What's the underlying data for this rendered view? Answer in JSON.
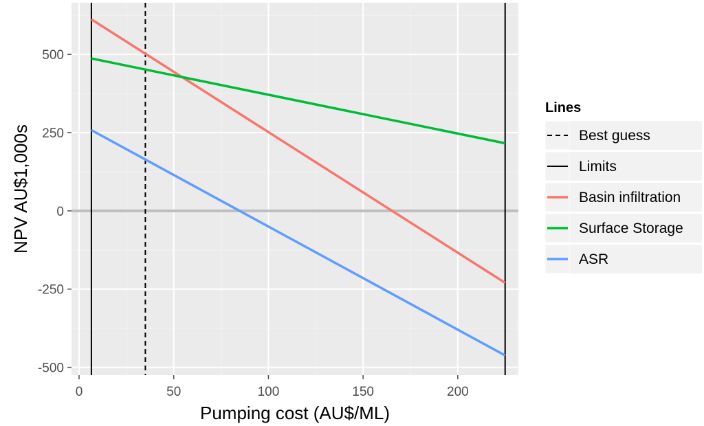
{
  "chart_data": {
    "type": "line",
    "xlabel": "Pumping cost (AU$/ML)",
    "ylabel": "NPV AU$1,000s",
    "xlim": [
      -4,
      232
    ],
    "ylim": [
      -525,
      665
    ],
    "xticks": [
      0,
      50,
      100,
      150,
      200
    ],
    "yticks": [
      -500,
      -250,
      0,
      250,
      500
    ],
    "xtick_labels": [
      "0",
      "50",
      "100",
      "150",
      "200"
    ],
    "ytick_labels": [
      "-500",
      "-250",
      "0",
      "250",
      "500"
    ],
    "grid": true,
    "zero_line": 0,
    "series": [
      {
        "name": "Basin infiltration",
        "color": "#f8766d",
        "x": [
          6.5,
          225
        ],
        "y": [
          612,
          -230
        ]
      },
      {
        "name": "Surface Storage",
        "color": "#00ba38",
        "x": [
          6.5,
          225
        ],
        "y": [
          487,
          216
        ]
      },
      {
        "name": "ASR",
        "color": "#619cff",
        "x": [
          6.5,
          225
        ],
        "y": [
          258,
          -462
        ]
      }
    ],
    "vlines": [
      {
        "name": "Best guess",
        "x": 35,
        "style": "dashed"
      },
      {
        "name": "Limits",
        "x": 6.5,
        "style": "solid"
      },
      {
        "name": "Limits",
        "x": 225,
        "style": "solid"
      }
    ],
    "legend": {
      "title": "Lines",
      "position": "right",
      "entries": [
        {
          "label": "Best guess",
          "style": "dashed",
          "color": "#000000"
        },
        {
          "label": "Limits",
          "style": "solid",
          "color": "#000000"
        },
        {
          "label": "Basin infiltration",
          "style": "solid",
          "color": "#f8766d"
        },
        {
          "label": "Surface Storage",
          "style": "solid",
          "color": "#00ba38"
        },
        {
          "label": "ASR",
          "style": "solid",
          "color": "#619cff"
        }
      ]
    }
  }
}
